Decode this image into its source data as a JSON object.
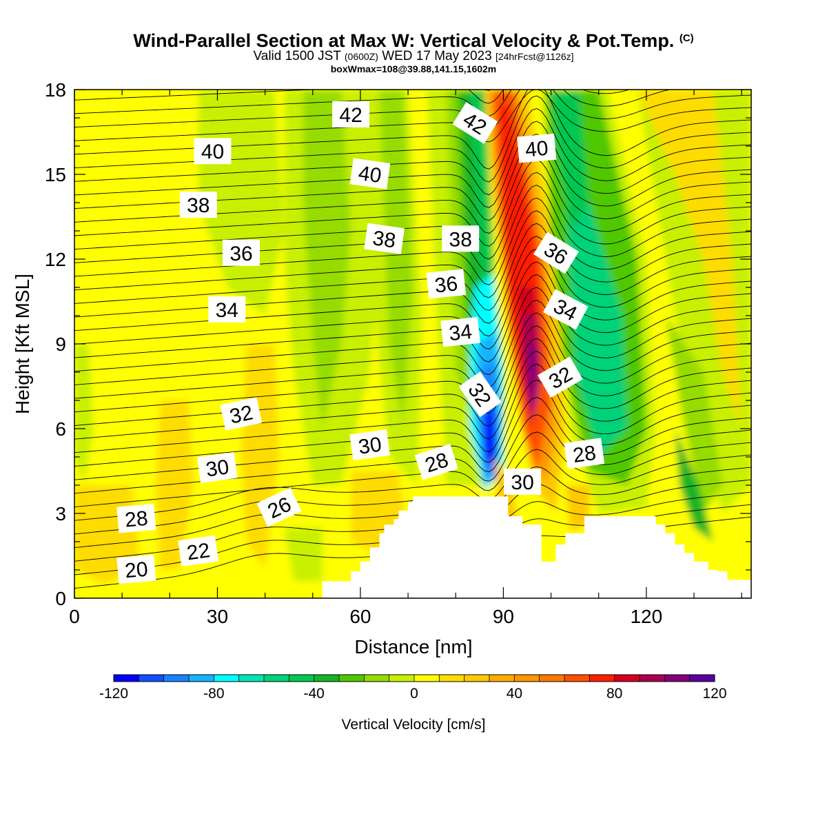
{
  "header": {
    "title": "Wind-Parallel Section at Max W: Vertical Velocity & Pot.Temp.",
    "copyright": "(C)",
    "valid_prefix": "Valid 1500 JST",
    "valid_zulu": "(0600Z)",
    "valid_date": "WED 17 May 2023",
    "forecast": "[24hrFcst@1126z]",
    "box_info": "boxWmax=108@39.88,141.15,1602m"
  },
  "chart_data": {
    "type": "heatmap",
    "xlabel": "Distance [nm]",
    "ylabel": "Height [Kft MSL]",
    "xlim": [
      0,
      142
    ],
    "ylim": [
      0,
      18
    ],
    "x_ticks": [
      0,
      30,
      60,
      90,
      120
    ],
    "x_tick_labels": [
      "0",
      "30",
      "60",
      "90",
      "120"
    ],
    "y_ticks": [
      0,
      3,
      6,
      9,
      12,
      15,
      18
    ],
    "y_tick_labels": [
      "0",
      "3",
      "6",
      "9",
      "12",
      "15",
      "18"
    ],
    "colorbar": {
      "label": "Vertical Velocity [cm/s]",
      "min": -120,
      "max": 120,
      "step": 10,
      "tick_labels": [
        "-120",
        "-80",
        "-40",
        "0",
        "40",
        "80",
        "120"
      ],
      "colors": [
        "#0000ff",
        "#1050ff",
        "#1a82ff",
        "#14b4ff",
        "#00ffff",
        "#00e6b4",
        "#00d278",
        "#00c850",
        "#14b428",
        "#50c800",
        "#96dc00",
        "#c8f000",
        "#ffff00",
        "#ffdc00",
        "#ffc800",
        "#ffaa00",
        "#ff9600",
        "#ff7800",
        "#ff5000",
        "#ff1e00",
        "#d2001e",
        "#aa0050",
        "#820078",
        "#5a00a0"
      ]
    },
    "field_features": [
      {
        "name": "downdraft",
        "min_cm_s": -120,
        "x": [
          85,
          90
        ],
        "y": [
          3.5,
          10
        ]
      },
      {
        "name": "updraft",
        "max_cm_s": 120,
        "x": [
          92,
          99
        ],
        "y": [
          4,
          18
        ]
      },
      {
        "name": "sinking band",
        "min_cm_s": -60,
        "x": [
          100,
          120
        ],
        "y": [
          3,
          16
        ]
      }
    ],
    "theta_contours": {
      "name": "Potential temperature",
      "labels": [
        {
          "text": "42",
          "x": 58,
          "y": 17.1,
          "rotate": 0
        },
        {
          "text": "42",
          "x": 84,
          "y": 16.8,
          "rotate": 32
        },
        {
          "text": "40",
          "x": 29,
          "y": 15.8,
          "rotate": 0
        },
        {
          "text": "40",
          "x": 62,
          "y": 15.0,
          "rotate": 8
        },
        {
          "text": "40",
          "x": 97,
          "y": 15.9,
          "rotate": -5
        },
        {
          "text": "38",
          "x": 26,
          "y": 13.9,
          "rotate": 0
        },
        {
          "text": "38",
          "x": 65,
          "y": 12.7,
          "rotate": 8
        },
        {
          "text": "38",
          "x": 81,
          "y": 12.7,
          "rotate": 0
        },
        {
          "text": "36",
          "x": 35,
          "y": 12.2,
          "rotate": 0
        },
        {
          "text": "36",
          "x": 78,
          "y": 11.1,
          "rotate": -6
        },
        {
          "text": "36",
          "x": 101,
          "y": 12.2,
          "rotate": 32
        },
        {
          "text": "34",
          "x": 32,
          "y": 10.2,
          "rotate": 0
        },
        {
          "text": "34",
          "x": 81,
          "y": 9.4,
          "rotate": -6
        },
        {
          "text": "34",
          "x": 103,
          "y": 10.2,
          "rotate": 28
        },
        {
          "text": "32",
          "x": 35,
          "y": 6.5,
          "rotate": -12
        },
        {
          "text": "32",
          "x": 85,
          "y": 7.2,
          "rotate": 55
        },
        {
          "text": "32",
          "x": 102,
          "y": 7.8,
          "rotate": -30
        },
        {
          "text": "30",
          "x": 30,
          "y": 4.6,
          "rotate": -8
        },
        {
          "text": "30",
          "x": 62,
          "y": 5.4,
          "rotate": -8
        },
        {
          "text": "30",
          "x": 94,
          "y": 4.1,
          "rotate": 0
        },
        {
          "text": "28",
          "x": 13,
          "y": 2.8,
          "rotate": -5
        },
        {
          "text": "28",
          "x": 76,
          "y": 4.8,
          "rotate": -18
        },
        {
          "text": "28",
          "x": 107,
          "y": 5.1,
          "rotate": -8
        },
        {
          "text": "26",
          "x": 43,
          "y": 3.2,
          "rotate": -25
        },
        {
          "text": "22",
          "x": 26,
          "y": 1.65,
          "rotate": -8
        },
        {
          "text": "20",
          "x": 13,
          "y": 1.0,
          "rotate": -5
        }
      ]
    },
    "terrain": {
      "x": [
        52,
        58,
        60,
        62,
        64,
        65,
        67,
        68,
        70,
        71,
        73,
        75,
        77,
        79,
        81,
        83,
        88,
        90,
        91,
        93,
        94,
        96,
        98,
        100,
        101,
        103,
        105,
        107,
        109,
        115,
        120,
        122,
        124,
        126,
        128,
        130,
        133,
        135,
        137,
        139
      ],
      "height_kft": [
        0.6,
        0.95,
        1.3,
        1.8,
        2.3,
        2.6,
        2.8,
        3.1,
        3.4,
        3.6,
        3.6,
        3.6,
        3.6,
        3.6,
        3.6,
        3.6,
        3.6,
        3.6,
        2.9,
        2.9,
        2.6,
        2.6,
        1.3,
        1.3,
        1.9,
        2.3,
        2.3,
        2.9,
        2.9,
        2.9,
        2.9,
        2.6,
        2.3,
        1.9,
        1.6,
        1.3,
        1.0,
        0.95,
        0.65,
        0.65
      ]
    }
  }
}
